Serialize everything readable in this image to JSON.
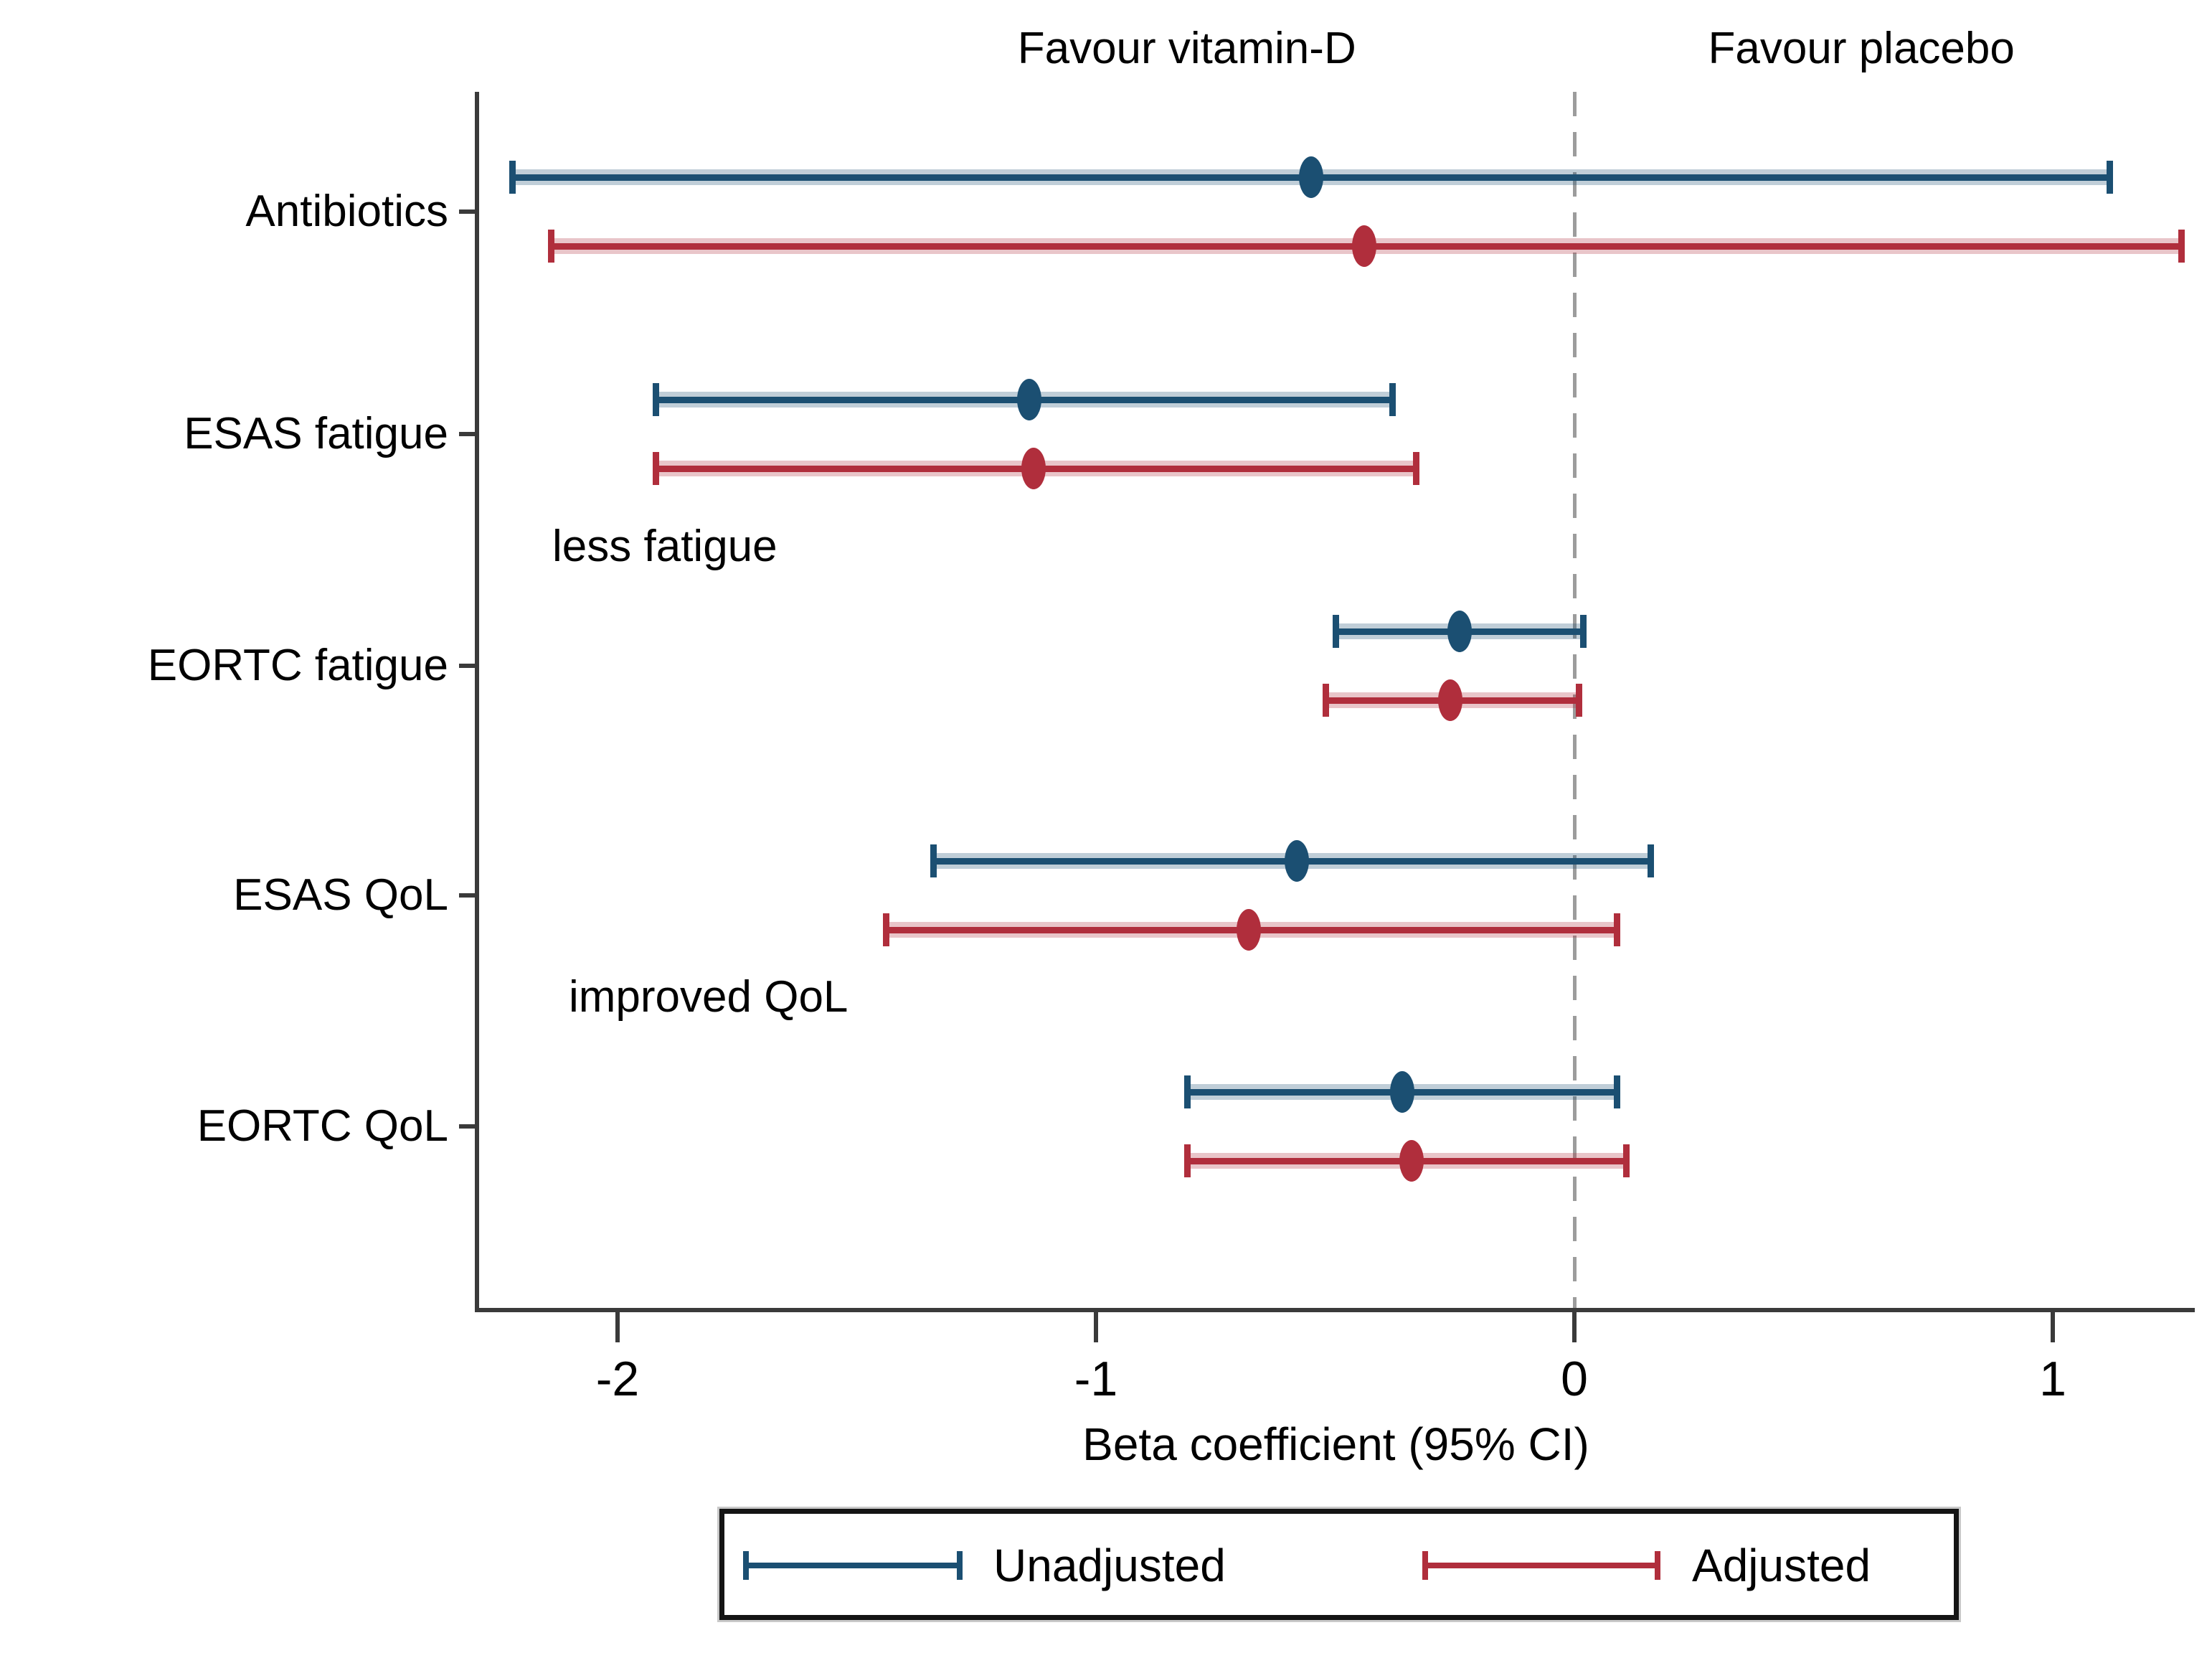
{
  "figure": {
    "background": "#ffffff"
  },
  "headers": {
    "left": {
      "text": "Favour vitamin-D",
      "center_value": -0.81
    },
    "right": {
      "text": "Favour placebo",
      "center_value": 0.6
    }
  },
  "colors": {
    "unadjusted": "#1b4f72",
    "adjusted": "#b02e3c",
    "axis": "#3a3a3a",
    "zero_line": "#9c9c9c",
    "text": "#000000"
  },
  "chart_data": {
    "type": "scatter",
    "subtype": "forest-plot-with-95ci",
    "title": "",
    "xlabel": "Beta coefficient (95% CI)",
    "xlim": [
      -2.3,
      1.32
    ],
    "x_ticks": [
      -2,
      -1,
      0,
      1
    ],
    "zero_reference_line": 0,
    "grid": false,
    "legend_position": "bottom",
    "categories": [
      "Antibiotics",
      "ESAS fatigue",
      "EORTC fatigue",
      "ESAS QoL",
      "EORTC QoL"
    ],
    "series": [
      {
        "name": "Unadjusted",
        "color": "#1b4f72",
        "points": [
          {
            "category": "Antibiotics",
            "est": -0.55,
            "lo": -2.22,
            "hi": 1.12
          },
          {
            "category": "ESAS fatigue",
            "est": -1.14,
            "lo": -1.92,
            "hi": -0.38
          },
          {
            "category": "EORTC fatigue",
            "est": -0.24,
            "lo": -0.5,
            "hi": 0.02
          },
          {
            "category": "ESAS QoL",
            "est": -0.58,
            "lo": -1.34,
            "hi": 0.16
          },
          {
            "category": "EORTC QoL",
            "est": -0.36,
            "lo": -0.81,
            "hi": 0.09
          }
        ]
      },
      {
        "name": "Adjusted",
        "color": "#b02e3c",
        "points": [
          {
            "category": "Antibiotics",
            "est": -0.44,
            "lo": -2.14,
            "hi": 1.27
          },
          {
            "category": "ESAS fatigue",
            "est": -1.13,
            "lo": -1.92,
            "hi": -0.33
          },
          {
            "category": "EORTC fatigue",
            "est": -0.26,
            "lo": -0.52,
            "hi": 0.01
          },
          {
            "category": "ESAS QoL",
            "est": -0.68,
            "lo": -1.44,
            "hi": 0.09
          },
          {
            "category": "EORTC QoL",
            "est": -0.34,
            "lo": -0.81,
            "hi": 0.11
          }
        ]
      }
    ],
    "annotations": [
      {
        "text": "less fatigue",
        "after_category_index": 1
      },
      {
        "text": "improved QoL",
        "after_category_index": 3
      }
    ]
  },
  "legend": {
    "items": [
      {
        "label": "Unadjusted",
        "color_key": "unadjusted"
      },
      {
        "label": "Adjusted",
        "color_key": "adjusted"
      }
    ]
  }
}
